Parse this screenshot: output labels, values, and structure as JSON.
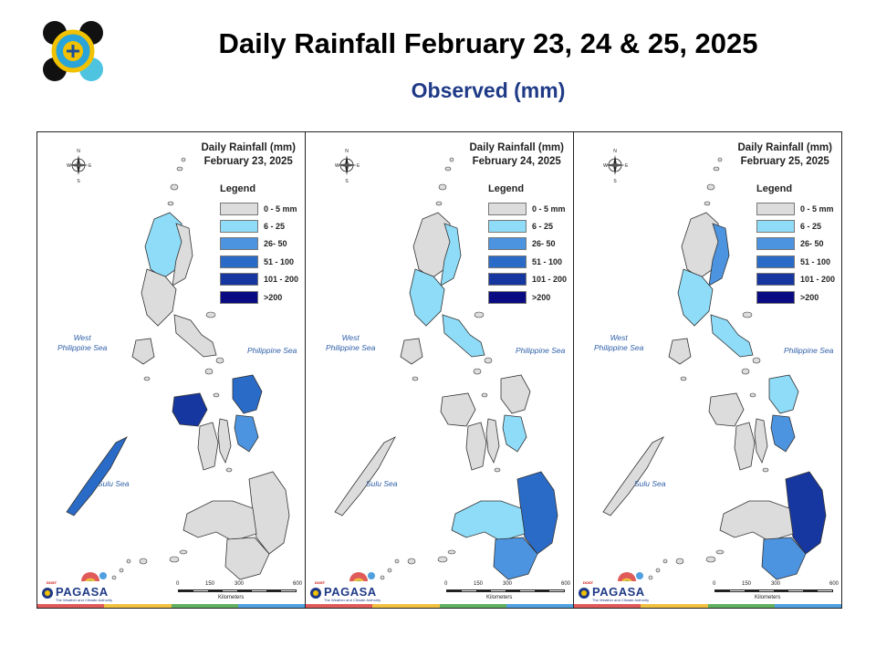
{
  "header": {
    "title": "Daily Rainfall February 23, 24 & 25, 2025",
    "subtitle": "Observed (mm)"
  },
  "colors": {
    "dry": "#dddddd",
    "outline": "#333333",
    "sea_label": "#2f5fa8",
    "title_blue": "#1f3a86"
  },
  "legend": {
    "title": "Legend",
    "items": [
      {
        "label": "0 - 5 mm",
        "color": "#dcdcdc"
      },
      {
        "label": "6 - 25",
        "color": "#8fdcf8"
      },
      {
        "label": "26- 50",
        "color": "#4d94e0"
      },
      {
        "label": "51 - 100",
        "color": "#2a6bc8"
      },
      {
        "label": "101 - 200",
        "color": "#1737a0"
      },
      {
        "label": ">200",
        "color": "#0a0a82"
      }
    ]
  },
  "seas": {
    "west_line1": "West",
    "west_line2": "Philippine Sea",
    "philippine": "Philippine Sea",
    "sulu": "Sulu Sea"
  },
  "compass": {
    "n": "N",
    "s": "S",
    "e": "E",
    "w": "W"
  },
  "scale": {
    "ticks": [
      "0",
      "150",
      "300",
      "600"
    ],
    "unit": "Kilometers"
  },
  "brand": {
    "top": "DOST",
    "name": "PAGASA",
    "sub": "The Weather and Climate Authority"
  },
  "footer_colors": [
    "#e05a5a",
    "#f0c040",
    "#60b060",
    "#50a0e0"
  ],
  "panels": [
    {
      "title_line1": "Daily Rainfall (mm)",
      "title_line2": "February 23, 2025",
      "regions": {
        "luzon_north": "#8fdcf8",
        "luzon_east": "#dcdcdc",
        "luzon_central": "#dcdcdc",
        "bicol": "#dcdcdc",
        "samar": "#2a6bc8",
        "leyte": "#4d94e0",
        "panay": "#1737a0",
        "negros": "#dcdcdc",
        "cebu": "#dcdcdc",
        "palawan": "#2a6bc8",
        "mindanao_east": "#dcdcdc",
        "mindanao_west": "#dcdcdc",
        "mindanao_south": "#dcdcdc",
        "mindoro": "#dcdcdc"
      }
    },
    {
      "title_line1": "Daily Rainfall (mm)",
      "title_line2": "February 24, 2025",
      "regions": {
        "luzon_north": "#dcdcdc",
        "luzon_east": "#8fdcf8",
        "luzon_central": "#8fdcf8",
        "bicol": "#8fdcf8",
        "samar": "#dcdcdc",
        "leyte": "#8fdcf8",
        "panay": "#dcdcdc",
        "negros": "#dcdcdc",
        "cebu": "#dcdcdc",
        "palawan": "#dcdcdc",
        "mindanao_east": "#2a6bc8",
        "mindanao_west": "#8fdcf8",
        "mindanao_south": "#4d94e0",
        "mindoro": "#dcdcdc"
      }
    },
    {
      "title_line1": "Daily Rainfall (mm)",
      "title_line2": "February 25, 2025",
      "regions": {
        "luzon_north": "#dcdcdc",
        "luzon_east": "#4d94e0",
        "luzon_central": "#8fdcf8",
        "bicol": "#8fdcf8",
        "samar": "#8fdcf8",
        "leyte": "#4d94e0",
        "panay": "#dcdcdc",
        "negros": "#dcdcdc",
        "cebu": "#dcdcdc",
        "palawan": "#dcdcdc",
        "mindanao_east": "#1737a0",
        "mindanao_west": "#dcdcdc",
        "mindanao_south": "#4d94e0",
        "mindoro": "#dcdcdc"
      }
    }
  ]
}
